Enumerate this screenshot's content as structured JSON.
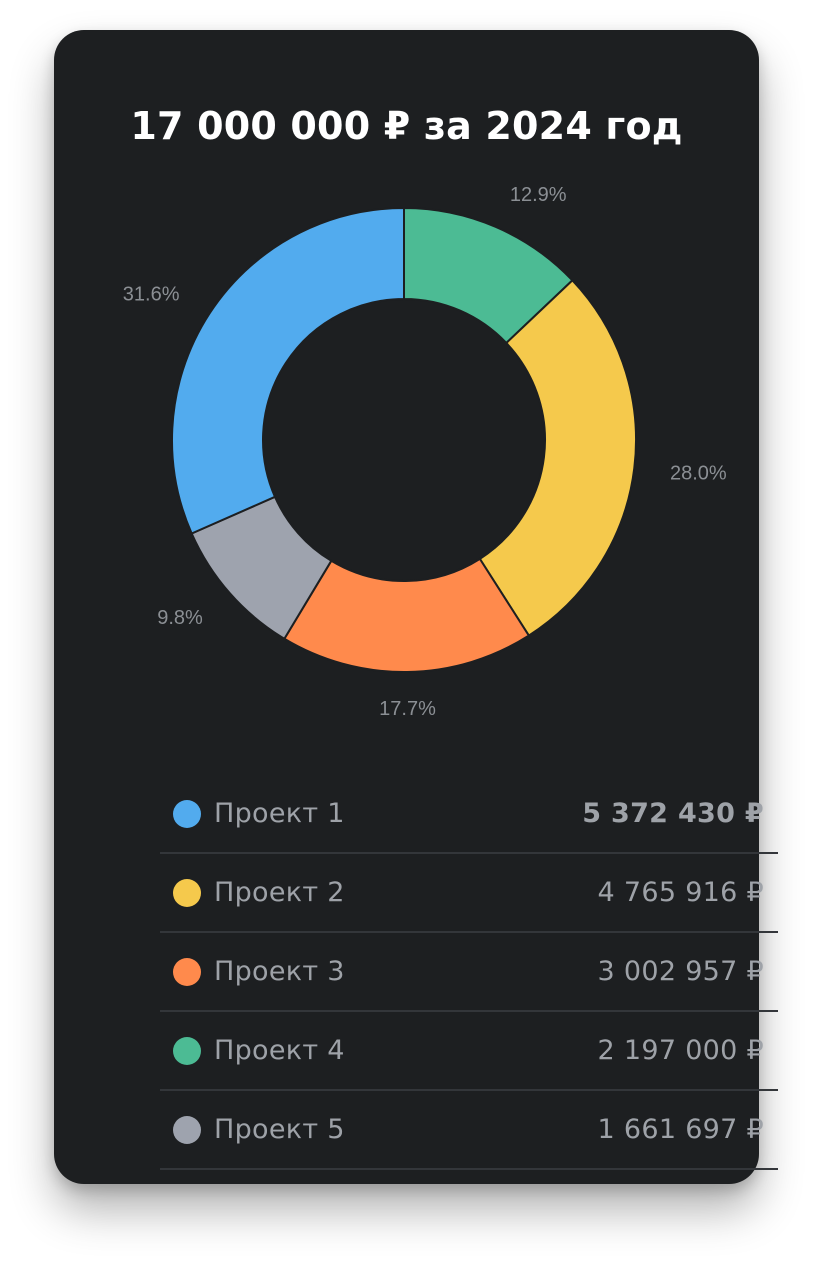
{
  "title": "17 000 000 ₽ за 2024 год",
  "chart_data": {
    "type": "pie",
    "donut": true,
    "categories": [
      "Проект 1",
      "Проект 2",
      "Проект 3",
      "Проект 4",
      "Проект 5"
    ],
    "values": [
      5372430,
      4765916,
      3002957,
      2197000,
      1661697
    ],
    "percent_labels": [
      "31.6%",
      "28.0%",
      "17.7%",
      "12.9%",
      "9.8%"
    ],
    "colors": [
      "#52abee",
      "#f5c94c",
      "#ff8a4c",
      "#4cbb94",
      "#9ea3ae"
    ],
    "slice_order": [
      3,
      1,
      2,
      4,
      0
    ],
    "start_angle": "top, clockwise",
    "legend_position": "bottom"
  },
  "legend": {
    "items": [
      {
        "name": "Проект 1",
        "value": "5 372 430 ₽",
        "color": "#52abee"
      },
      {
        "name": "Проект 2",
        "value": "4 765 916 ₽",
        "color": "#f5c94c"
      },
      {
        "name": "Проект 3",
        "value": "3 002 957 ₽",
        "color": "#ff8a4c"
      },
      {
        "name": "Проект 4",
        "value": "2 197 000 ₽",
        "color": "#4cbb94"
      },
      {
        "name": "Проект 5",
        "value": "1 661 697 ₽",
        "color": "#9ea3ae"
      }
    ]
  }
}
